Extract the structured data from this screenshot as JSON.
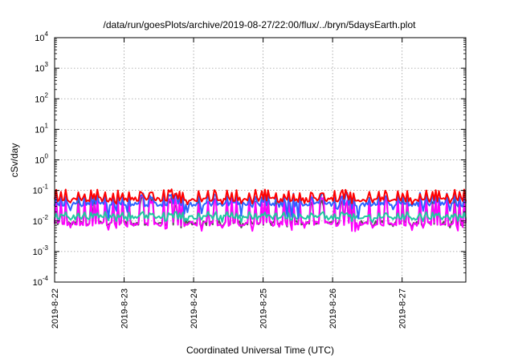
{
  "chart_data": {
    "type": "line",
    "title": "/data/run/goesPlots/archive/2019-08-27/22:00/flux/../bryn/5daysEarth.plot",
    "xlabel": "Coordinated Universal Time (UTC)",
    "ylabel": "cSv/day",
    "yscale": "log",
    "ylim": [
      0.0001,
      10000
    ],
    "xlim": [
      "2019-08-22T00:00",
      "2019-08-27T22:00"
    ],
    "grid": true,
    "x_ticks": [
      "2019-8-22",
      "2019-8-23",
      "2019-8-24",
      "2019-8-25",
      "2019-8-26",
      "2019-8-27"
    ],
    "y_ticks": [
      {
        "base": "10",
        "exp": "-4",
        "value": 0.0001
      },
      {
        "base": "10",
        "exp": "-3",
        "value": 0.001
      },
      {
        "base": "10",
        "exp": "-2",
        "value": 0.01
      },
      {
        "base": "10",
        "exp": "-1",
        "value": 0.1
      },
      {
        "base": "10",
        "exp": "0",
        "value": 1
      },
      {
        "base": "10",
        "exp": "1",
        "value": 10
      },
      {
        "base": "10",
        "exp": "2",
        "value": 100
      },
      {
        "base": "10",
        "exp": "3",
        "value": 1000
      },
      {
        "base": "10",
        "exp": "4",
        "value": 10000
      }
    ],
    "series": [
      {
        "color": "#ff0000",
        "base": 0.05,
        "spike": 0.11,
        "dip": 0.035
      },
      {
        "color": "#2d62ff",
        "base": 0.035,
        "spike": 0.085,
        "dip": 0.012
      },
      {
        "color": "#1fc9a0",
        "base": 0.013,
        "spike": 0.02,
        "dip": 0.009
      },
      {
        "color": "#ff00ff",
        "base": 0.008,
        "spike": 0.07,
        "dip": 0.0045
      },
      {
        "color": "#555555",
        "base": 0.0085,
        "spike": 0.065,
        "dip": 0.006
      }
    ]
  }
}
